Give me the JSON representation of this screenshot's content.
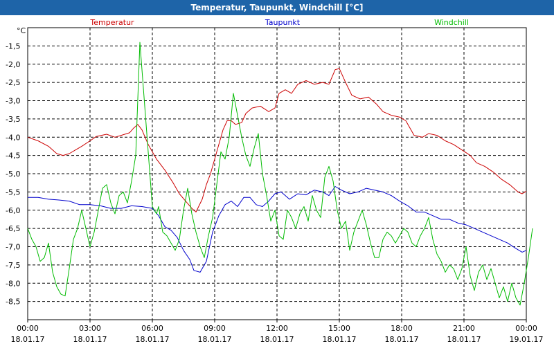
{
  "window": {
    "title": "Temperatur, Taupunkt, Windchill [°C]"
  },
  "chart_data": {
    "type": "line",
    "title": "Temperatur, Taupunkt, Windchill [°C]",
    "ylabel": "°C",
    "ylim": [
      -9.0,
      -1.0
    ],
    "y_ticks": [
      -1.5,
      -2.0,
      -2.5,
      -3.0,
      -3.5,
      -4.0,
      -4.5,
      -5.0,
      -5.5,
      -6.0,
      -6.5,
      -7.0,
      -7.5,
      -8.0,
      -8.5
    ],
    "y_tick_labels": [
      "-1,5",
      "-2,0",
      "-2,5",
      "-3,0",
      "-3,5",
      "-4,0",
      "-4,5",
      "-5,0",
      "-5,5",
      "-6,0",
      "-6,5",
      "-7,0",
      "-7,5",
      "-8,0",
      "-8,5"
    ],
    "xlim": [
      0,
      24
    ],
    "x_ticks": [
      {
        "pos": 0,
        "time": "00:00",
        "date": "18.01.17"
      },
      {
        "pos": 3,
        "time": "03:00",
        "date": "18.01.17"
      },
      {
        "pos": 6,
        "time": "06:00",
        "date": "18.01.17"
      },
      {
        "pos": 9,
        "time": "09:00",
        "date": "18.01.17"
      },
      {
        "pos": 12,
        "time": "12:00",
        "date": "18.01.17"
      },
      {
        "pos": 15,
        "time": "15:00",
        "date": "18.01.17"
      },
      {
        "pos": 18,
        "time": "18:00",
        "date": "18.01.17"
      },
      {
        "pos": 21,
        "time": "21:00",
        "date": "18.01.17"
      },
      {
        "pos": 24,
        "time": "00:00",
        "date": "19.01.17"
      }
    ],
    "grid": true,
    "series": [
      {
        "name": "Temperatur",
        "color": "#cc0000",
        "legend_align": "left",
        "points": [
          [
            0,
            -4.0
          ],
          [
            0.5,
            -4.1
          ],
          [
            1.0,
            -4.25
          ],
          [
            1.4,
            -4.45
          ],
          [
            1.7,
            -4.5
          ],
          [
            2.0,
            -4.45
          ],
          [
            2.3,
            -4.35
          ],
          [
            2.6,
            -4.25
          ],
          [
            3.0,
            -4.1
          ],
          [
            3.3,
            -3.98
          ],
          [
            3.8,
            -3.92
          ],
          [
            4.2,
            -4.0
          ],
          [
            4.5,
            -3.95
          ],
          [
            4.9,
            -3.88
          ],
          [
            5.1,
            -3.75
          ],
          [
            5.3,
            -3.65
          ],
          [
            5.5,
            -3.8
          ],
          [
            5.8,
            -4.2
          ],
          [
            6.2,
            -4.6
          ],
          [
            6.6,
            -4.9
          ],
          [
            7.0,
            -5.25
          ],
          [
            7.3,
            -5.55
          ],
          [
            7.6,
            -5.75
          ],
          [
            7.9,
            -5.95
          ],
          [
            8.1,
            -6.05
          ],
          [
            8.4,
            -5.7
          ],
          [
            8.6,
            -5.3
          ],
          [
            8.8,
            -5.0
          ],
          [
            9.0,
            -4.6
          ],
          [
            9.2,
            -4.2
          ],
          [
            9.4,
            -3.8
          ],
          [
            9.6,
            -3.55
          ],
          [
            9.8,
            -3.55
          ],
          [
            10.0,
            -3.65
          ],
          [
            10.3,
            -3.6
          ],
          [
            10.5,
            -3.35
          ],
          [
            10.8,
            -3.2
          ],
          [
            11.2,
            -3.15
          ],
          [
            11.6,
            -3.3
          ],
          [
            11.9,
            -3.2
          ],
          [
            12.1,
            -2.8
          ],
          [
            12.4,
            -2.7
          ],
          [
            12.7,
            -2.8
          ],
          [
            13.0,
            -2.55
          ],
          [
            13.4,
            -2.45
          ],
          [
            13.8,
            -2.55
          ],
          [
            14.2,
            -2.5
          ],
          [
            14.5,
            -2.55
          ],
          [
            14.8,
            -2.15
          ],
          [
            15.0,
            -2.12
          ],
          [
            15.3,
            -2.5
          ],
          [
            15.6,
            -2.85
          ],
          [
            16.0,
            -2.95
          ],
          [
            16.4,
            -2.9
          ],
          [
            16.8,
            -3.1
          ],
          [
            17.1,
            -3.3
          ],
          [
            17.5,
            -3.4
          ],
          [
            17.9,
            -3.45
          ],
          [
            18.2,
            -3.55
          ],
          [
            18.6,
            -3.95
          ],
          [
            19.0,
            -4.0
          ],
          [
            19.3,
            -3.9
          ],
          [
            19.7,
            -3.95
          ],
          [
            20.1,
            -4.1
          ],
          [
            20.5,
            -4.2
          ],
          [
            20.9,
            -4.35
          ],
          [
            21.3,
            -4.5
          ],
          [
            21.6,
            -4.7
          ],
          [
            22.0,
            -4.8
          ],
          [
            22.4,
            -4.95
          ],
          [
            22.8,
            -5.15
          ],
          [
            23.2,
            -5.3
          ],
          [
            23.6,
            -5.5
          ],
          [
            23.8,
            -5.55
          ],
          [
            24.0,
            -5.48
          ]
        ]
      },
      {
        "name": "Taupunkt",
        "color": "#0000cc",
        "legend_align": "center",
        "points": [
          [
            0,
            -5.65
          ],
          [
            0.5,
            -5.65
          ],
          [
            1.0,
            -5.7
          ],
          [
            1.5,
            -5.72
          ],
          [
            2.0,
            -5.75
          ],
          [
            2.5,
            -5.85
          ],
          [
            3.0,
            -5.85
          ],
          [
            3.5,
            -5.88
          ],
          [
            4.0,
            -5.95
          ],
          [
            4.5,
            -5.95
          ],
          [
            5.0,
            -5.88
          ],
          [
            5.5,
            -5.9
          ],
          [
            6.0,
            -5.95
          ],
          [
            6.3,
            -6.15
          ],
          [
            6.6,
            -6.45
          ],
          [
            6.9,
            -6.55
          ],
          [
            7.2,
            -6.75
          ],
          [
            7.5,
            -7.1
          ],
          [
            7.8,
            -7.35
          ],
          [
            8.0,
            -7.65
          ],
          [
            8.3,
            -7.7
          ],
          [
            8.6,
            -7.4
          ],
          [
            8.9,
            -6.6
          ],
          [
            9.2,
            -6.15
          ],
          [
            9.5,
            -5.85
          ],
          [
            9.8,
            -5.75
          ],
          [
            10.1,
            -5.9
          ],
          [
            10.4,
            -5.65
          ],
          [
            10.7,
            -5.65
          ],
          [
            11.0,
            -5.85
          ],
          [
            11.3,
            -5.9
          ],
          [
            11.6,
            -5.75
          ],
          [
            11.9,
            -5.55
          ],
          [
            12.2,
            -5.5
          ],
          [
            12.6,
            -5.7
          ],
          [
            13.0,
            -5.55
          ],
          [
            13.4,
            -5.58
          ],
          [
            13.8,
            -5.45
          ],
          [
            14.2,
            -5.5
          ],
          [
            14.5,
            -5.6
          ],
          [
            14.8,
            -5.35
          ],
          [
            15.1,
            -5.45
          ],
          [
            15.5,
            -5.55
          ],
          [
            15.9,
            -5.5
          ],
          [
            16.3,
            -5.4
          ],
          [
            16.7,
            -5.45
          ],
          [
            17.1,
            -5.5
          ],
          [
            17.5,
            -5.6
          ],
          [
            17.9,
            -5.75
          ],
          [
            18.3,
            -5.88
          ],
          [
            18.7,
            -6.05
          ],
          [
            19.1,
            -6.05
          ],
          [
            19.5,
            -6.15
          ],
          [
            19.9,
            -6.25
          ],
          [
            20.3,
            -6.25
          ],
          [
            20.7,
            -6.35
          ],
          [
            21.1,
            -6.4
          ],
          [
            21.5,
            -6.5
          ],
          [
            21.9,
            -6.6
          ],
          [
            22.3,
            -6.7
          ],
          [
            22.7,
            -6.8
          ],
          [
            23.1,
            -6.9
          ],
          [
            23.5,
            -7.05
          ],
          [
            23.8,
            -7.15
          ],
          [
            24.0,
            -7.1
          ]
        ]
      },
      {
        "name": "Windchill",
        "color": "#00bb00",
        "legend_align": "right",
        "points": [
          [
            0,
            -6.5
          ],
          [
            0.2,
            -6.8
          ],
          [
            0.4,
            -7.0
          ],
          [
            0.6,
            -7.4
          ],
          [
            0.8,
            -7.3
          ],
          [
            1.0,
            -6.9
          ],
          [
            1.2,
            -7.7
          ],
          [
            1.4,
            -8.1
          ],
          [
            1.6,
            -8.3
          ],
          [
            1.8,
            -8.35
          ],
          [
            2.0,
            -7.6
          ],
          [
            2.2,
            -6.8
          ],
          [
            2.4,
            -6.5
          ],
          [
            2.6,
            -6.0
          ],
          [
            2.8,
            -6.5
          ],
          [
            3.0,
            -7.0
          ],
          [
            3.2,
            -6.6
          ],
          [
            3.4,
            -6.0
          ],
          [
            3.6,
            -5.4
          ],
          [
            3.8,
            -5.3
          ],
          [
            4.0,
            -5.8
          ],
          [
            4.2,
            -6.1
          ],
          [
            4.4,
            -5.6
          ],
          [
            4.6,
            -5.5
          ],
          [
            4.8,
            -5.8
          ],
          [
            5.0,
            -5.2
          ],
          [
            5.2,
            -4.5
          ],
          [
            5.4,
            -1.4
          ],
          [
            5.6,
            -2.9
          ],
          [
            5.8,
            -4.4
          ],
          [
            6.0,
            -5.9
          ],
          [
            6.2,
            -6.1
          ],
          [
            6.3,
            -5.9
          ],
          [
            6.5,
            -6.6
          ],
          [
            6.7,
            -6.7
          ],
          [
            6.9,
            -6.9
          ],
          [
            7.1,
            -7.1
          ],
          [
            7.3,
            -6.8
          ],
          [
            7.5,
            -6.0
          ],
          [
            7.7,
            -5.4
          ],
          [
            7.9,
            -6.1
          ],
          [
            8.1,
            -6.6
          ],
          [
            8.3,
            -7.0
          ],
          [
            8.5,
            -7.3
          ],
          [
            8.7,
            -6.7
          ],
          [
            8.9,
            -6.2
          ],
          [
            9.1,
            -5.3
          ],
          [
            9.3,
            -4.4
          ],
          [
            9.5,
            -4.6
          ],
          [
            9.7,
            -4.0
          ],
          [
            9.9,
            -2.8
          ],
          [
            10.1,
            -3.4
          ],
          [
            10.3,
            -4.0
          ],
          [
            10.5,
            -4.5
          ],
          [
            10.7,
            -4.8
          ],
          [
            10.9,
            -4.3
          ],
          [
            11.1,
            -3.9
          ],
          [
            11.3,
            -5.0
          ],
          [
            11.5,
            -5.6
          ],
          [
            11.7,
            -6.3
          ],
          [
            11.9,
            -6.0
          ],
          [
            12.1,
            -6.7
          ],
          [
            12.3,
            -6.8
          ],
          [
            12.5,
            -6.0
          ],
          [
            12.7,
            -6.2
          ],
          [
            12.9,
            -6.5
          ],
          [
            13.1,
            -6.1
          ],
          [
            13.3,
            -5.9
          ],
          [
            13.5,
            -6.3
          ],
          [
            13.7,
            -5.6
          ],
          [
            13.9,
            -6.0
          ],
          [
            14.1,
            -6.2
          ],
          [
            14.3,
            -5.1
          ],
          [
            14.5,
            -4.8
          ],
          [
            14.7,
            -5.2
          ],
          [
            14.9,
            -6.0
          ],
          [
            15.1,
            -6.5
          ],
          [
            15.3,
            -6.3
          ],
          [
            15.5,
            -7.1
          ],
          [
            15.7,
            -6.6
          ],
          [
            15.9,
            -6.3
          ],
          [
            16.1,
            -6.0
          ],
          [
            16.3,
            -6.4
          ],
          [
            16.5,
            -6.9
          ],
          [
            16.7,
            -7.3
          ],
          [
            16.9,
            -7.3
          ],
          [
            17.1,
            -6.8
          ],
          [
            17.3,
            -6.6
          ],
          [
            17.5,
            -6.7
          ],
          [
            17.7,
            -6.9
          ],
          [
            17.9,
            -6.7
          ],
          [
            18.1,
            -6.5
          ],
          [
            18.3,
            -6.6
          ],
          [
            18.5,
            -6.9
          ],
          [
            18.7,
            -7.0
          ],
          [
            18.9,
            -6.7
          ],
          [
            19.1,
            -6.5
          ],
          [
            19.3,
            -6.2
          ],
          [
            19.5,
            -6.8
          ],
          [
            19.7,
            -7.2
          ],
          [
            19.9,
            -7.4
          ],
          [
            20.1,
            -7.7
          ],
          [
            20.3,
            -7.5
          ],
          [
            20.5,
            -7.6
          ],
          [
            20.7,
            -7.9
          ],
          [
            20.9,
            -7.6
          ],
          [
            21.1,
            -7.0
          ],
          [
            21.3,
            -7.8
          ],
          [
            21.5,
            -8.2
          ],
          [
            21.7,
            -7.7
          ],
          [
            21.9,
            -7.5
          ],
          [
            22.1,
            -7.9
          ],
          [
            22.3,
            -7.6
          ],
          [
            22.5,
            -8.0
          ],
          [
            22.7,
            -8.4
          ],
          [
            22.9,
            -8.1
          ],
          [
            23.1,
            -8.5
          ],
          [
            23.3,
            -8.0
          ],
          [
            23.5,
            -8.4
          ],
          [
            23.7,
            -8.6
          ],
          [
            23.9,
            -8.0
          ],
          [
            24.1,
            -7.3
          ],
          [
            24.3,
            -6.5
          ]
        ]
      }
    ]
  }
}
